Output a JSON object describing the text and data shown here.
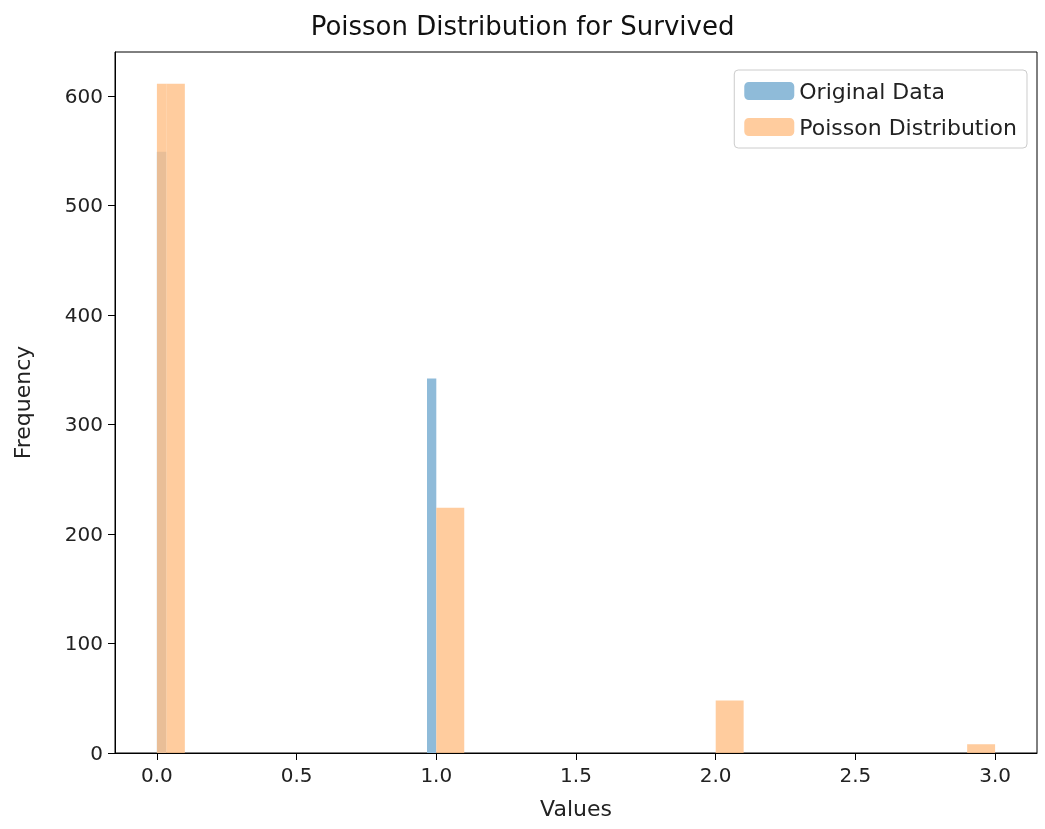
{
  "chart_data": {
    "type": "histogram",
    "title": "Poisson Distribution for Survived",
    "xlabel": "Values",
    "ylabel": "Frequency",
    "bins": [
      0,
      0.0333,
      0.1,
      0.9667,
      1.0,
      1.1,
      2.0,
      2.1,
      2.9,
      3.0
    ],
    "series": [
      {
        "name": "Original Data",
        "color": "#8fbbd9",
        "values": [
          549,
          0,
          0,
          342,
          0,
          0,
          0,
          0,
          0
        ]
      },
      {
        "name": "Poisson Distribution",
        "color": "#ffbf86",
        "values": [
          611,
          611,
          0,
          0,
          224,
          0,
          48,
          0,
          8
        ]
      }
    ],
    "xlim": [
      -0.15,
      3.15
    ],
    "xticks": [
      {
        "value": 0,
        "label": "0.0"
      },
      {
        "value": 0.5,
        "label": "0.5"
      },
      {
        "value": 1,
        "label": "1.0"
      },
      {
        "value": 1.5,
        "label": "1.5"
      },
      {
        "value": 2,
        "label": "2.0"
      },
      {
        "value": 2.5,
        "label": "2.5"
      },
      {
        "value": 3,
        "label": "3.0"
      }
    ],
    "ylim": [
      0,
      640
    ],
    "yticks": [
      0,
      100,
      200,
      300,
      400,
      500,
      600
    ],
    "grid": false,
    "legend": "top right"
  }
}
